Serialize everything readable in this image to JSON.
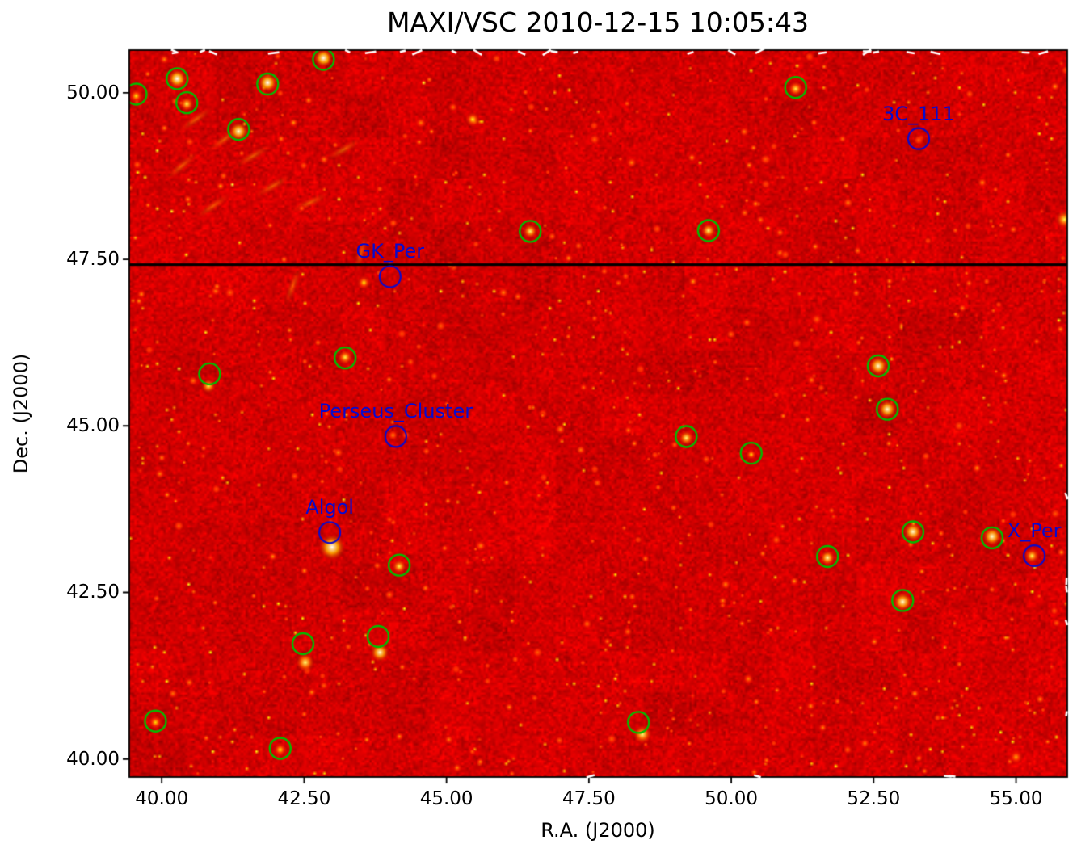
{
  "figure": {
    "title": "MAXI/VSC 2010-12-15 10:05:43"
  },
  "chart_data": {
    "type": "heatmap",
    "title": "MAXI/VSC 2010-12-15 10:05:43",
    "xlabel": "R.A. (J2000)",
    "ylabel": "Dec. (J2000)",
    "xlim": [
      39.43,
      55.9
    ],
    "ylim": [
      39.73,
      50.64
    ],
    "x_tick_values": [
      40.0,
      42.5,
      45.0,
      47.5,
      50.0,
      52.5,
      55.0
    ],
    "x_tick_labels": [
      "40.00",
      "42.50",
      "45.00",
      "47.50",
      "50.00",
      "52.50",
      "55.00"
    ],
    "y_tick_values": [
      40.0,
      42.5,
      45.0,
      47.5,
      50.0
    ],
    "y_tick_labels": [
      "40.00",
      "42.50",
      "45.00",
      "47.50",
      "50.00"
    ],
    "colormap": "hot",
    "background_color": "#ce0000",
    "scan_line_dec": 47.42,
    "colors": {
      "detected": "#00bd00",
      "labeled": "#0a0acd",
      "label_text": "#0a0acd",
      "scan_line": "#000000"
    },
    "labeled_sources": [
      {
        "name": "3C_111",
        "ra": 53.29,
        "dec": 49.31
      },
      {
        "name": "GK_Per",
        "ra": 44.01,
        "dec": 47.24
      },
      {
        "name": "Perseus_Cluster",
        "ra": 44.11,
        "dec": 44.84
      },
      {
        "name": "Algol",
        "ra": 42.95,
        "dec": 43.4
      },
      {
        "name": "X_Per",
        "ra": 55.32,
        "dec": 43.05
      }
    ],
    "detected_source_circles": [
      [
        39.55,
        49.98
      ],
      [
        40.27,
        50.21
      ],
      [
        40.44,
        49.85
      ],
      [
        41.35,
        49.45
      ],
      [
        41.86,
        50.13
      ],
      [
        42.84,
        50.5
      ],
      [
        51.13,
        50.08
      ],
      [
        46.47,
        47.92
      ],
      [
        49.6,
        47.93
      ],
      [
        40.84,
        45.78
      ],
      [
        43.22,
        46.02
      ],
      [
        52.58,
        45.9
      ],
      [
        52.74,
        45.25
      ],
      [
        49.21,
        44.84
      ],
      [
        50.35,
        44.59
      ],
      [
        44.17,
        42.91
      ],
      [
        51.69,
        43.04
      ],
      [
        53.19,
        43.41
      ],
      [
        54.58,
        43.32
      ],
      [
        53.01,
        42.38
      ],
      [
        42.48,
        41.73
      ],
      [
        43.8,
        41.84
      ],
      [
        39.89,
        40.57
      ],
      [
        42.08,
        40.16
      ],
      [
        48.37,
        40.55
      ]
    ],
    "bright_spots": [
      [
        40.27,
        50.21,
        1.0,
        5
      ],
      [
        41.86,
        50.15,
        1.0,
        5
      ],
      [
        42.84,
        50.52,
        1.0,
        5
      ],
      [
        41.35,
        49.42,
        0.95,
        5
      ],
      [
        40.44,
        49.83,
        0.8,
        4
      ],
      [
        39.55,
        49.95,
        0.7,
        4
      ],
      [
        51.13,
        50.06,
        0.8,
        4
      ],
      [
        46.47,
        47.92,
        0.85,
        4
      ],
      [
        49.6,
        47.93,
        0.85,
        4
      ],
      [
        43.22,
        46.03,
        0.8,
        4
      ],
      [
        40.82,
        45.6,
        0.8,
        4
      ],
      [
        52.58,
        45.9,
        0.95,
        5
      ],
      [
        52.74,
        45.25,
        0.95,
        5
      ],
      [
        49.21,
        44.82,
        0.85,
        4
      ],
      [
        50.35,
        44.57,
        0.7,
        3
      ],
      [
        42.99,
        43.18,
        1.0,
        7
      ],
      [
        44.17,
        42.89,
        0.8,
        4
      ],
      [
        51.69,
        43.02,
        0.9,
        4
      ],
      [
        53.19,
        43.41,
        0.95,
        5
      ],
      [
        54.58,
        43.34,
        0.95,
        5
      ],
      [
        53.01,
        42.36,
        0.95,
        5
      ],
      [
        42.52,
        41.45,
        0.85,
        5
      ],
      [
        43.83,
        41.6,
        0.95,
        5
      ],
      [
        39.89,
        40.55,
        0.7,
        4
      ],
      [
        42.08,
        40.14,
        0.7,
        4
      ],
      [
        48.44,
        40.37,
        0.85,
        5
      ],
      [
        55.28,
        43.05,
        0.8,
        4
      ],
      [
        43.55,
        47.15,
        0.7,
        4
      ],
      [
        44.06,
        44.86,
        0.55,
        3
      ],
      [
        53.29,
        49.29,
        0.5,
        3
      ],
      [
        45.46,
        49.6,
        0.75,
        4
      ],
      [
        44.55,
        49.55,
        0.55,
        3
      ],
      [
        48.25,
        48.95,
        0.55,
        3
      ],
      [
        52.05,
        48.35,
        0.55,
        3
      ],
      [
        55.85,
        48.1,
        0.8,
        5
      ],
      [
        46.0,
        47.0,
        0.55,
        3
      ],
      [
        47.0,
        44.95,
        0.55,
        3
      ],
      [
        49.9,
        42.62,
        0.55,
        3
      ],
      [
        50.3,
        41.2,
        0.55,
        3
      ],
      [
        45.6,
        43.2,
        0.55,
        3
      ],
      [
        47.9,
        40.3,
        0.5,
        3
      ],
      [
        44.9,
        46.5,
        0.5,
        3
      ],
      [
        43.1,
        44.6,
        0.55,
        3
      ],
      [
        41.2,
        47.0,
        0.5,
        3
      ],
      [
        40.3,
        43.5,
        0.5,
        3
      ],
      [
        46.6,
        41.6,
        0.5,
        3
      ],
      [
        51.5,
        46.6,
        0.5,
        3
      ],
      [
        54.0,
        45.0,
        0.5,
        3
      ],
      [
        50.6,
        49.0,
        0.5,
        3
      ],
      [
        47.6,
        49.3,
        0.5,
        3
      ],
      [
        55.0,
        40.03,
        0.6,
        4
      ]
    ],
    "artifact_streaks": [
      [
        40.6,
        49.6,
        -35
      ],
      [
        41.1,
        49.3,
        -35
      ],
      [
        41.6,
        49.05,
        -30
      ],
      [
        40.35,
        48.9,
        -40
      ],
      [
        41.95,
        48.6,
        -30
      ],
      [
        42.6,
        48.35,
        -25
      ],
      [
        43.2,
        49.15,
        -30
      ],
      [
        40.9,
        48.3,
        -35
      ],
      [
        43.5,
        47.6,
        -75
      ],
      [
        42.3,
        47.1,
        -70
      ]
    ]
  }
}
